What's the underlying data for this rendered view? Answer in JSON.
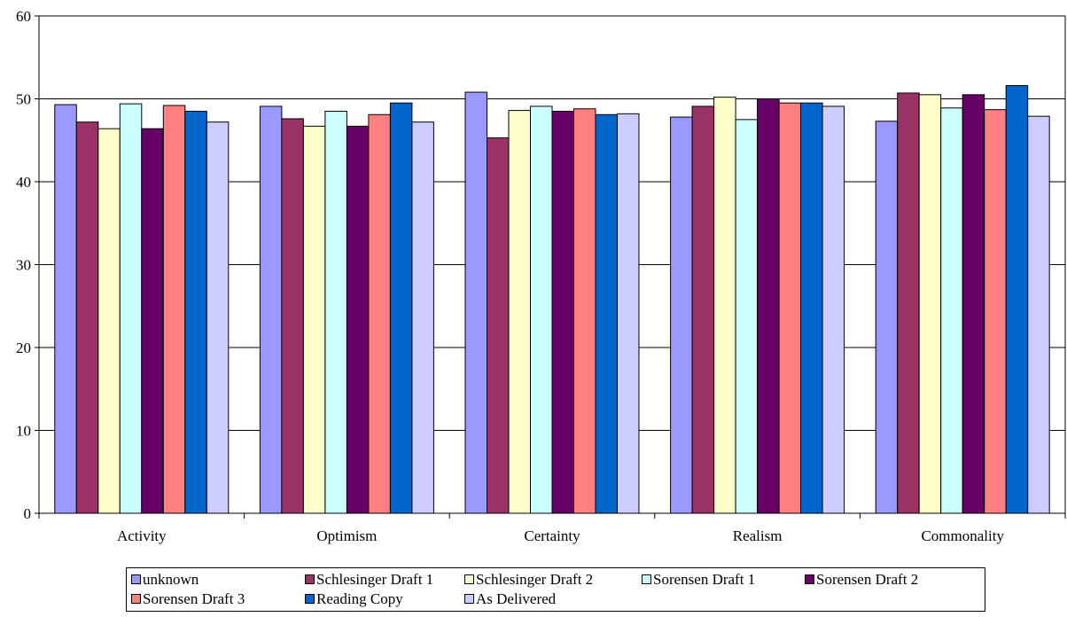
{
  "chart_data": {
    "type": "bar",
    "categories": [
      "Activity",
      "Optimism",
      "Certainty",
      "Realism",
      "Commonality"
    ],
    "ylim": [
      0,
      60
    ],
    "yticks": [
      "0",
      "10",
      "20",
      "30",
      "40",
      "50",
      "60"
    ],
    "grid": true,
    "legend_position": "bottom",
    "series": [
      {
        "name": "unknown",
        "color": "#9999FF",
        "values": [
          49.3,
          49.1,
          50.8,
          47.8,
          47.3
        ]
      },
      {
        "name": "Schlesinger Draft 1",
        "color": "#993366",
        "values": [
          47.2,
          47.6,
          45.3,
          49.1,
          50.7
        ]
      },
      {
        "name": "Schlesinger Draft 2",
        "color": "#FFFFCC",
        "values": [
          46.4,
          46.7,
          48.6,
          50.2,
          50.5
        ]
      },
      {
        "name": "Sorensen Draft 1",
        "color": "#CCFFFF",
        "values": [
          49.4,
          48.5,
          49.1,
          47.5,
          48.9
        ]
      },
      {
        "name": "Sorensen Draft 2",
        "color": "#660066",
        "values": [
          46.4,
          46.7,
          48.5,
          50.0,
          50.5
        ]
      },
      {
        "name": "Sorensen Draft 3",
        "color": "#FF8080",
        "values": [
          49.2,
          48.1,
          48.8,
          49.5,
          48.7
        ]
      },
      {
        "name": "Reading Copy",
        "color": "#0066CC",
        "values": [
          48.5,
          49.5,
          48.1,
          49.5,
          51.6
        ]
      },
      {
        "name": "As Delivered",
        "color": "#CCCCFF",
        "values": [
          47.2,
          47.2,
          48.2,
          49.1,
          47.9
        ]
      }
    ]
  }
}
